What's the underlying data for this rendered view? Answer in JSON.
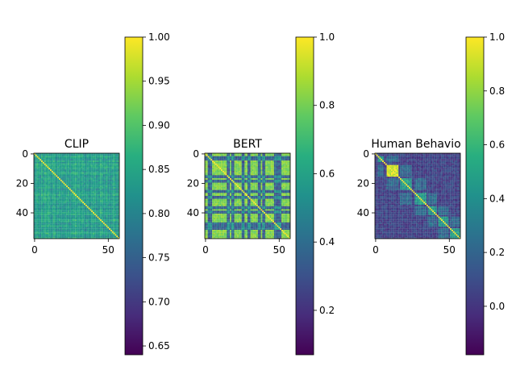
{
  "chart_data": [
    {
      "type": "heatmap",
      "title": "CLIP",
      "matrix_size": 58,
      "x_ticks": [
        0,
        50
      ],
      "y_ticks": [
        0,
        20,
        40
      ],
      "value_range": [
        0.64,
        1.0
      ],
      "diagonal_value": 1.0,
      "typical_offdiagonal_value": 0.84,
      "colorbar": {
        "range": [
          0.64,
          1.0
        ],
        "ticks": [
          "0.65",
          "0.70",
          "0.75",
          "0.80",
          "0.85",
          "0.90",
          "0.95",
          "1.00"
        ],
        "tick_values": [
          0.65,
          0.7,
          0.75,
          0.8,
          0.85,
          0.9,
          0.95,
          1.0
        ]
      },
      "colormap": "viridis"
    },
    {
      "type": "heatmap",
      "title": "BERT",
      "matrix_size": 58,
      "x_ticks": [
        0,
        50
      ],
      "y_ticks": [
        0,
        20,
        40
      ],
      "value_range": [
        0.07,
        1.0
      ],
      "diagonal_value": 1.0,
      "typical_offdiagonal_value": 0.82,
      "low_value_rows": [
        2,
        3,
        4,
        15,
        16,
        18,
        19,
        25,
        26,
        29,
        30,
        36,
        37,
        39,
        40,
        47,
        48,
        49,
        50,
        51
      ],
      "colorbar": {
        "range": [
          0.07,
          1.0
        ],
        "ticks": [
          "0.2",
          "0.4",
          "0.6",
          "0.8",
          "1.0"
        ],
        "tick_values": [
          0.2,
          0.4,
          0.6,
          0.8,
          1.0
        ]
      },
      "colormap": "viridis"
    },
    {
      "type": "heatmap",
      "title": "Human Behavio",
      "matrix_size": 58,
      "x_ticks": [
        0,
        50
      ],
      "y_ticks": [
        0,
        20,
        40
      ],
      "value_range": [
        -0.18,
        1.0
      ],
      "diagonal_value": 1.0,
      "typical_offdiagonal_value": 0.05,
      "block_clusters": [
        [
          2,
          5
        ],
        [
          8,
          15
        ],
        [
          17,
          24
        ],
        [
          27,
          34
        ],
        [
          36,
          41
        ],
        [
          43,
          49
        ],
        [
          51,
          57
        ]
      ],
      "colorbar": {
        "range": [
          -0.18,
          1.0
        ],
        "ticks": [
          "0.0",
          "0.2",
          "0.4",
          "0.6",
          "0.8",
          "1.0"
        ],
        "tick_values": [
          0.0,
          0.2,
          0.4,
          0.6,
          0.8,
          1.0
        ]
      },
      "colormap": "viridis"
    }
  ]
}
